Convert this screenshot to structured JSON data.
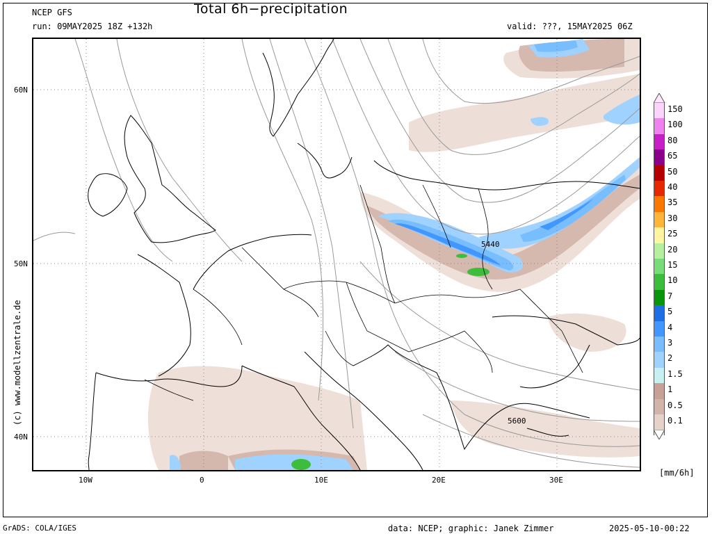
{
  "header": {
    "model": "NCEP GFS",
    "run": "run: 09MAY2025 18Z +132h",
    "title": "Total 6h−precipitation",
    "valid": "valid: ???, 15MAY2025 06Z"
  },
  "map": {
    "lat_labels": [
      "60N",
      "50N",
      "40N"
    ],
    "lon_labels": [
      "10W",
      "0",
      "10E",
      "20E",
      "30E"
    ],
    "contour_labels": [
      "5440",
      "5600"
    ]
  },
  "legend": {
    "unit": "[mm/6h]",
    "levels": [
      {
        "label": "150",
        "color": "#fbd4fb"
      },
      {
        "label": "100",
        "color": "#ee82ee"
      },
      {
        "label": "80",
        "color": "#c71ec7"
      },
      {
        "label": "65",
        "color": "#8b008b"
      },
      {
        "label": "50",
        "color": "#b40000"
      },
      {
        "label": "40",
        "color": "#e62800"
      },
      {
        "label": "35",
        "color": "#fa7800"
      },
      {
        "label": "30",
        "color": "#ffb43c"
      },
      {
        "label": "25",
        "color": "#fff5a0"
      },
      {
        "label": "20",
        "color": "#b4f0a0"
      },
      {
        "label": "15",
        "color": "#78dc78"
      },
      {
        "label": "10",
        "color": "#3cbe3c"
      },
      {
        "label": "7",
        "color": "#0a960a"
      },
      {
        "label": "5",
        "color": "#1e6ee6"
      },
      {
        "label": "4",
        "color": "#4196ff"
      },
      {
        "label": "3",
        "color": "#78beff"
      },
      {
        "label": "2",
        "color": "#a0d2ff"
      },
      {
        "label": "1.5",
        "color": "#c8f0f0"
      },
      {
        "label": "1",
        "color": "#c8a096"
      },
      {
        "label": "0.5",
        "color": "#d2b4aa"
      },
      {
        "label": "0.1",
        "color": "#e6d2c8"
      }
    ],
    "extra": {
      "color": "#f5e8e2"
    }
  },
  "watermark": "(c) www.modellzentrale.de",
  "footer": {
    "left": "GrADS: COLA/IGES",
    "center": "data: NCEP; graphic: Janek Zimmer",
    "right": "2025-05-10-00:22"
  }
}
